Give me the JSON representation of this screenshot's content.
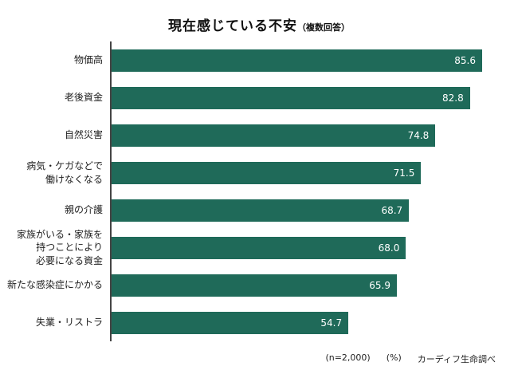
{
  "title": "現在感じている不安",
  "title_note": "（複数回答）",
  "footer": {
    "n": "(n=2,000)",
    "unit": "(%)",
    "source": "カーディフ生命調べ"
  },
  "colors": {
    "bar": "#1f6a59",
    "axis": "#444444",
    "value_text": "#ffffff"
  },
  "chart_data": {
    "type": "bar",
    "orientation": "horizontal",
    "title": "現在感じている不安（複数回答）",
    "categories": [
      "物価高",
      "老後資金",
      "自然災害",
      "病気・ケガなどで\n働けなくなる",
      "親の介護",
      "家族がいる・家族を\n持つことにより\n必要になる資金",
      "新たな感染症にかかる",
      "失業・リストラ"
    ],
    "values": [
      85.6,
      82.8,
      74.8,
      71.5,
      68.7,
      68.0,
      65.9,
      54.7
    ],
    "xlim": [
      0,
      88
    ],
    "unit": "%",
    "sample_size": "n=2,000",
    "grid": false,
    "legend": false,
    "value_labels_position": "inside-end"
  }
}
